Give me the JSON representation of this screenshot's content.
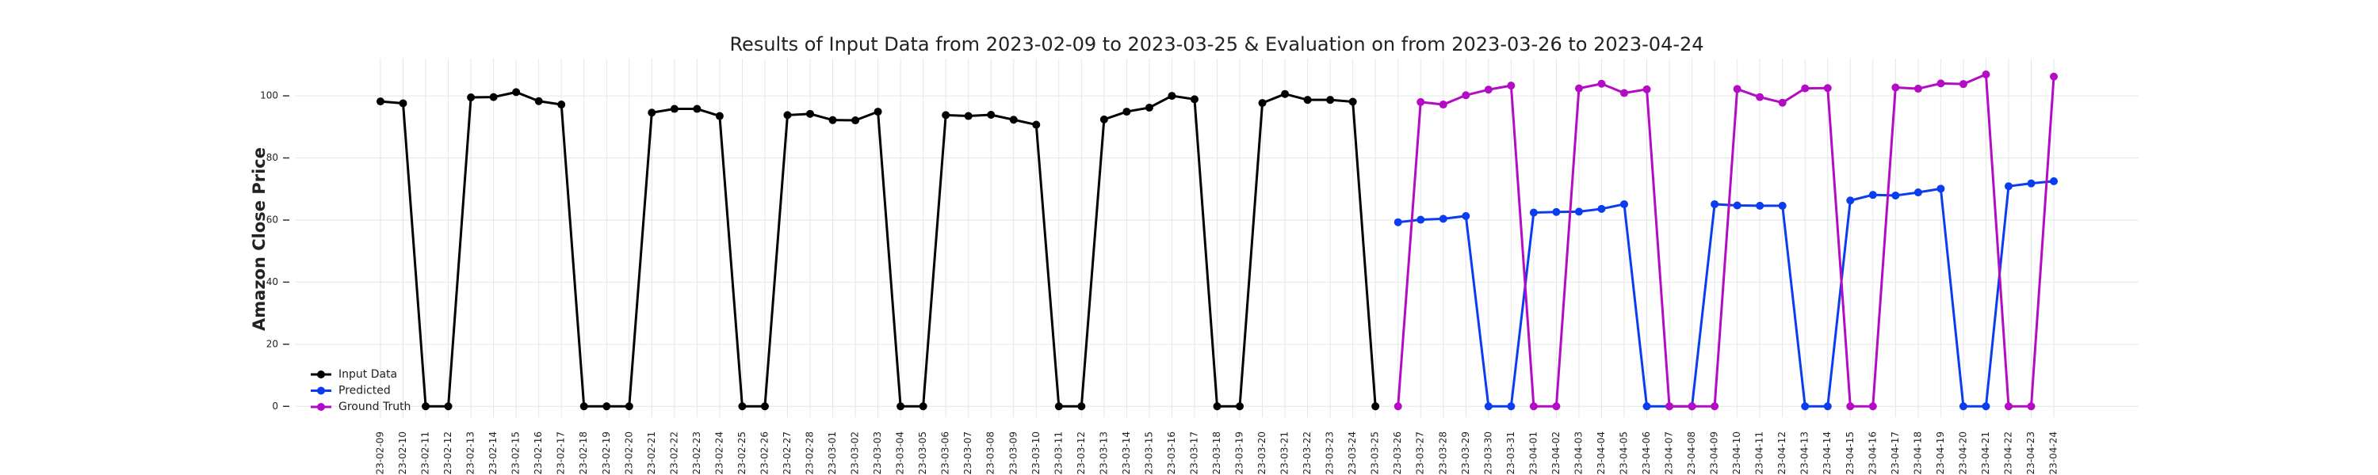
{
  "chart_data": {
    "type": "line",
    "title": "Results of Input Data from 2023-02-09 to 2023-03-25 & Evaluation on from 2023-03-26 to 2023-04-24",
    "y_label": "Amazon Close Price",
    "categories": [
      "2023-02-09",
      "2023-02-10",
      "2023-02-11",
      "2023-02-12",
      "2023-02-13",
      "2023-02-14",
      "2023-02-15",
      "2023-02-16",
      "2023-02-17",
      "2023-02-18",
      "2023-02-19",
      "2023-02-20",
      "2023-02-21",
      "2023-02-22",
      "2023-02-23",
      "2023-02-24",
      "2023-02-25",
      "2023-02-26",
      "2023-02-27",
      "2023-02-28",
      "2023-03-01",
      "2023-03-02",
      "2023-03-03",
      "2023-03-04",
      "2023-03-05",
      "2023-03-06",
      "2023-03-07",
      "2023-03-08",
      "2023-03-09",
      "2023-03-10",
      "2023-03-11",
      "2023-03-12",
      "2023-03-13",
      "2023-03-14",
      "2023-03-15",
      "2023-03-16",
      "2023-03-17",
      "2023-03-18",
      "2023-03-19",
      "2023-03-20",
      "2023-03-21",
      "2023-03-22",
      "2023-03-23",
      "2023-03-24",
      "2023-03-25",
      "2023-03-26",
      "2023-03-27",
      "2023-03-28",
      "2023-03-29",
      "2023-03-30",
      "2023-03-31",
      "2023-04-01",
      "2023-04-02",
      "2023-04-03",
      "2023-04-04",
      "2023-04-05",
      "2023-04-06",
      "2023-04-07",
      "2023-04-08",
      "2023-04-09",
      "2023-04-10",
      "2023-04-11",
      "2023-04-12",
      "2023-04-13",
      "2023-04-14",
      "2023-04-15",
      "2023-04-16",
      "2023-04-17",
      "2023-04-18",
      "2023-04-19",
      "2023-04-20",
      "2023-04-21",
      "2023-04-22",
      "2023-04-23",
      "2023-04-24"
    ],
    "series": [
      {
        "name": "Input Data",
        "color": "#000000",
        "values": [
          98.2,
          97.6,
          0,
          0,
          99.5,
          99.6,
          101.2,
          98.3,
          97.2,
          0,
          0,
          0,
          94.6,
          95.8,
          95.8,
          93.5,
          0,
          0,
          93.8,
          94.2,
          92.2,
          92.1,
          94.9,
          0,
          0,
          93.8,
          93.5,
          93.9,
          92.3,
          90.7,
          0,
          0,
          92.4,
          94.9,
          96.2,
          100.0,
          98.9,
          0,
          0,
          97.7,
          100.6,
          98.7,
          98.7,
          98.1,
          0,
          null,
          null,
          null,
          null,
          null,
          null,
          null,
          null,
          null,
          null,
          null,
          null,
          null,
          null,
          null,
          null,
          null,
          null,
          null,
          null,
          null,
          null,
          null,
          null,
          null,
          null,
          null,
          null,
          null,
          null
        ]
      },
      {
        "name": "Predicted",
        "color": "#0a3cf0",
        "values": [
          null,
          null,
          null,
          null,
          null,
          null,
          null,
          null,
          null,
          null,
          null,
          null,
          null,
          null,
          null,
          null,
          null,
          null,
          null,
          null,
          null,
          null,
          null,
          null,
          null,
          null,
          null,
          null,
          null,
          null,
          null,
          null,
          null,
          null,
          null,
          null,
          null,
          null,
          null,
          null,
          null,
          null,
          null,
          null,
          null,
          59.3,
          60.1,
          60.4,
          61.3,
          0,
          0,
          62.4,
          62.6,
          62.7,
          63.6,
          65.1,
          0,
          0,
          0,
          65.1,
          64.7,
          64.6,
          64.6,
          0,
          0,
          66.3,
          68.1,
          67.9,
          68.9,
          70.1,
          0,
          0,
          70.9,
          71.8,
          72.5
        ]
      },
      {
        "name": "Ground Truth",
        "color": "#b30cc4",
        "values": [
          null,
          null,
          null,
          null,
          null,
          null,
          null,
          null,
          null,
          null,
          null,
          null,
          null,
          null,
          null,
          null,
          null,
          null,
          null,
          null,
          null,
          null,
          null,
          null,
          null,
          null,
          null,
          null,
          null,
          null,
          null,
          null,
          null,
          null,
          null,
          null,
          null,
          null,
          null,
          null,
          null,
          null,
          null,
          null,
          null,
          0,
          98.0,
          97.2,
          100.2,
          102.0,
          103.3,
          0,
          0,
          102.4,
          103.9,
          100.9,
          102.1,
          0,
          0,
          0,
          102.2,
          99.6,
          97.8,
          102.4,
          102.5,
          0,
          0,
          102.7,
          102.3,
          104.0,
          103.8,
          106.9,
          0,
          0,
          106.2
        ]
      }
    ],
    "ylim": [
      -3.5,
      112
    ],
    "yticks": [
      0,
      20,
      40,
      60,
      80,
      100
    ],
    "grid": true,
    "legend": "lower left"
  }
}
